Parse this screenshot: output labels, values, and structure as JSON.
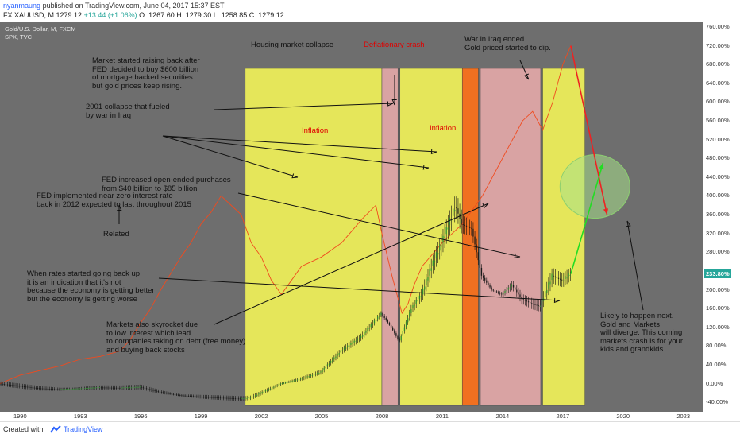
{
  "header": {
    "user": "nyanmaung",
    "published": "published on TradingView.com, June 04, 2017 15:37 EST",
    "symbol": "FX:XAUUSD, M",
    "price": "1279.12",
    "change": "+13.44 (+1.06%)",
    "ohlc": "O: 1267.60  H: 1279.30  L: 1258.85  C: 1279.12"
  },
  "legend": {
    "main": "Gold/U.S. Dollar, M, FXCM",
    "compare": "SPX, TVC"
  },
  "colors": {
    "plot_bg": "#6e6e6e",
    "inflation": "#e5e65a",
    "deflation": "#d9a3a3",
    "crash": "#f07020",
    "spx_line": "#f04a1e",
    "candle_up": "#2e8b2e",
    "candle_down": "#1a1a1a",
    "projection_up": "#22dd22",
    "projection_down": "#ee2222",
    "oval": "#a8e08a"
  },
  "annotations": {
    "housing": "Housing market collapse",
    "deflation": "Deflationary crash",
    "iraq_end": "War in Iraq ended.\nGold priced started to dip.",
    "market_raise": "Market started raising back after\nFED decided to buy $600 billion\nof mortgage backed securities\nbut gold prices keep rising.",
    "collapse_2001": "2001 collapse that fueled\nby war in Iraq",
    "inflation1": "Inflation",
    "inflation2": "Inflation",
    "fed_purchase": "FED increased open-ended purchases\nfrom $40 billion to $85 billion",
    "fed_zero": "FED implemented near zero interest rate\nback in 2012 expected to last throughout 2015",
    "related": "Related",
    "rates": "When rates started going back up\nit is an indication that it's not\nbecause the economy is getting better\nbut the economy is getting worse",
    "markets_sky": "Markets also skyrocket due\nto low interest which lead\nto companies taking on debt (free money)\nand buying back stocks",
    "likely": "Likely to happen next.\nGold and Markets\nwill diverge. This coming\nmarkets crash is for your\nkids and grandkids"
  },
  "footer": {
    "created": "Created with",
    "brand": "TradingView"
  },
  "current_badge": "233.80%",
  "chart_data": {
    "type": "line",
    "xlim": [
      1989,
      2024
    ],
    "ylim": [
      -60,
      770
    ],
    "y_unit": "%",
    "x_ticks": [
      "1990",
      "1993",
      "1996",
      "1999",
      "2002",
      "2005",
      "2008",
      "2011",
      "2014",
      "2017",
      "2020",
      "2023"
    ],
    "y_ticks": [
      "760.00%",
      "720.00%",
      "680.00%",
      "640.00%",
      "600.00%",
      "560.00%",
      "520.00%",
      "480.00%",
      "440.00%",
      "400.00%",
      "360.00%",
      "320.00%",
      "280.00%",
      "240.00%",
      "200.00%",
      "160.00%",
      "120.00%",
      "80.00%",
      "40.00%",
      "0.00%",
      "-40.00%"
    ],
    "regions": [
      {
        "kind": "inflation",
        "start": 2001.2,
        "end": 2008.0
      },
      {
        "kind": "deflation",
        "start": 2008.0,
        "end": 2008.8
      },
      {
        "kind": "inflation",
        "start": 2008.9,
        "end": 2012.0
      },
      {
        "kind": "crash",
        "start": 2012.0,
        "end": 2012.8
      },
      {
        "kind": "deflation",
        "start": 2012.9,
        "end": 2015.9
      },
      {
        "kind": "inflation",
        "start": 2016.0,
        "end": 2018.1
      }
    ],
    "series": [
      {
        "name": "SPX, TVC",
        "x": [
          1989.0,
          1990.0,
          1991.0,
          1992.0,
          1993.0,
          1994.0,
          1995.0,
          1995.5,
          1996.0,
          1996.5,
          1997.0,
          1997.5,
          1998.0,
          1998.5,
          1999.0,
          1999.5,
          2000.0,
          2000.5,
          2001.0,
          2001.5,
          2002.0,
          2002.5,
          2003.0,
          2003.5,
          2004.0,
          2005.0,
          2006.0,
          2007.0,
          2007.7,
          2008.0,
          2008.5,
          2009.0,
          2009.3,
          2009.6,
          2010.0,
          2011.0,
          2011.5,
          2012.0,
          2013.0,
          2014.0,
          2015.0,
          2015.5,
          2016.0,
          2016.5,
          2017.0,
          2017.4
        ],
        "values": [
          0,
          18,
          28,
          38,
          52,
          58,
          70,
          95,
          130,
          160,
          200,
          235,
          270,
          300,
          340,
          365,
          400,
          380,
          360,
          300,
          270,
          220,
          190,
          220,
          250,
          270,
          300,
          350,
          380,
          320,
          230,
          150,
          170,
          210,
          250,
          300,
          320,
          340,
          400,
          480,
          560,
          580,
          540,
          600,
          680,
          720
        ]
      },
      {
        "name": "Gold/U.S. Dollar, M, FXCM",
        "x": [
          1989.0,
          1990.0,
          1991.0,
          1992.0,
          1993.0,
          1994.0,
          1995.0,
          1996.0,
          1997.0,
          1998.0,
          1999.0,
          2000.0,
          2001.0,
          2001.5,
          2002.0,
          2003.0,
          2004.0,
          2005.0,
          2006.0,
          2007.0,
          2008.0,
          2008.5,
          2008.9,
          2009.5,
          2010.0,
          2010.5,
          2011.0,
          2011.7,
          2012.0,
          2012.5,
          2013.0,
          2013.5,
          2014.0,
          2014.5,
          2015.0,
          2015.5,
          2015.9,
          2016.5,
          2017.0,
          2017.4
        ],
        "values": [
          0,
          -5,
          -10,
          -12,
          -10,
          -8,
          -9,
          -7,
          -18,
          -25,
          -28,
          -30,
          -32,
          -30,
          -20,
          0,
          10,
          25,
          70,
          100,
          150,
          120,
          90,
          160,
          190,
          250,
          300,
          380,
          340,
          330,
          230,
          200,
          190,
          210,
          180,
          170,
          165,
          230,
          220,
          233.8
        ]
      }
    ],
    "projections": [
      {
        "name": "gold_up",
        "x": [
          2017.4,
          2019.0
        ],
        "values": [
          233.8,
          470
        ]
      },
      {
        "name": "spx_down",
        "x": [
          2017.4,
          2019.2
        ],
        "values": [
          720,
          360
        ]
      }
    ]
  }
}
